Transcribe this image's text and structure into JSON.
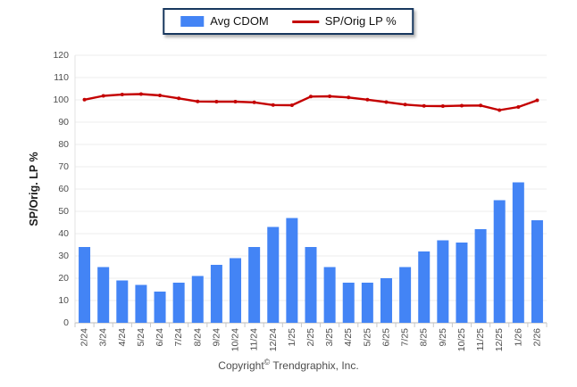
{
  "chart_data": {
    "type": "bar",
    "subtype": "bar-line-combo",
    "categories": [
      "2/24",
      "3/24",
      "4/24",
      "5/24",
      "6/24",
      "7/24",
      "8/24",
      "9/24",
      "10/24",
      "11/24",
      "12/24",
      "1/25",
      "2/25",
      "3/25",
      "4/25",
      "5/25",
      "6/25",
      "7/25",
      "8/25",
      "9/25",
      "10/25",
      "11/25",
      "12/25",
      "1/26",
      "2/26"
    ],
    "series": [
      {
        "name": "Avg CDOM",
        "type": "bar",
        "color": "#4384F5",
        "values": [
          34,
          25,
          19,
          17,
          14,
          18,
          21,
          26,
          29,
          34,
          43,
          47,
          34,
          25,
          18,
          18,
          20,
          25,
          32,
          37,
          36,
          42,
          55,
          63,
          46
        ]
      },
      {
        "name": "SP/Orig LP %",
        "type": "line",
        "color": "#C40000",
        "values": [
          100.1,
          101.8,
          102.4,
          102.6,
          102.0,
          100.7,
          99.3,
          99.2,
          99.2,
          98.9,
          97.7,
          97.6,
          101.5,
          101.6,
          101.1,
          100.1,
          99.0,
          97.9,
          97.3,
          97.2,
          97.4,
          97.5,
          95.4,
          96.8,
          99.8
        ]
      }
    ],
    "title": "",
    "xlabel": "",
    "ylabel": "SP/Orig. LP %",
    "ylim": [
      0,
      120
    ],
    "ytick_step": 10,
    "yticks": [
      0,
      10,
      20,
      30,
      40,
      50,
      60,
      70,
      80,
      90,
      100,
      110,
      120
    ],
    "grid": "horizontal",
    "legend_position": "top-center"
  },
  "legend": {
    "items": [
      {
        "label": "Avg CDOM",
        "swatch": "bar",
        "color": "#4384F5"
      },
      {
        "label": "SP/Orig LP %",
        "swatch": "line",
        "color": "#C40000"
      }
    ]
  },
  "footer": {
    "copyright_pre": "Copyright",
    "copyright_symbol": "©",
    "copyright_post": "Trendgraphix, Inc."
  },
  "colors": {
    "bar": "#4384F5",
    "line": "#C40000",
    "legend_border": "#17375E",
    "gridline": "#ECECEC",
    "axis": "#C6C6C6",
    "tick_label": "#4d4d4d"
  }
}
